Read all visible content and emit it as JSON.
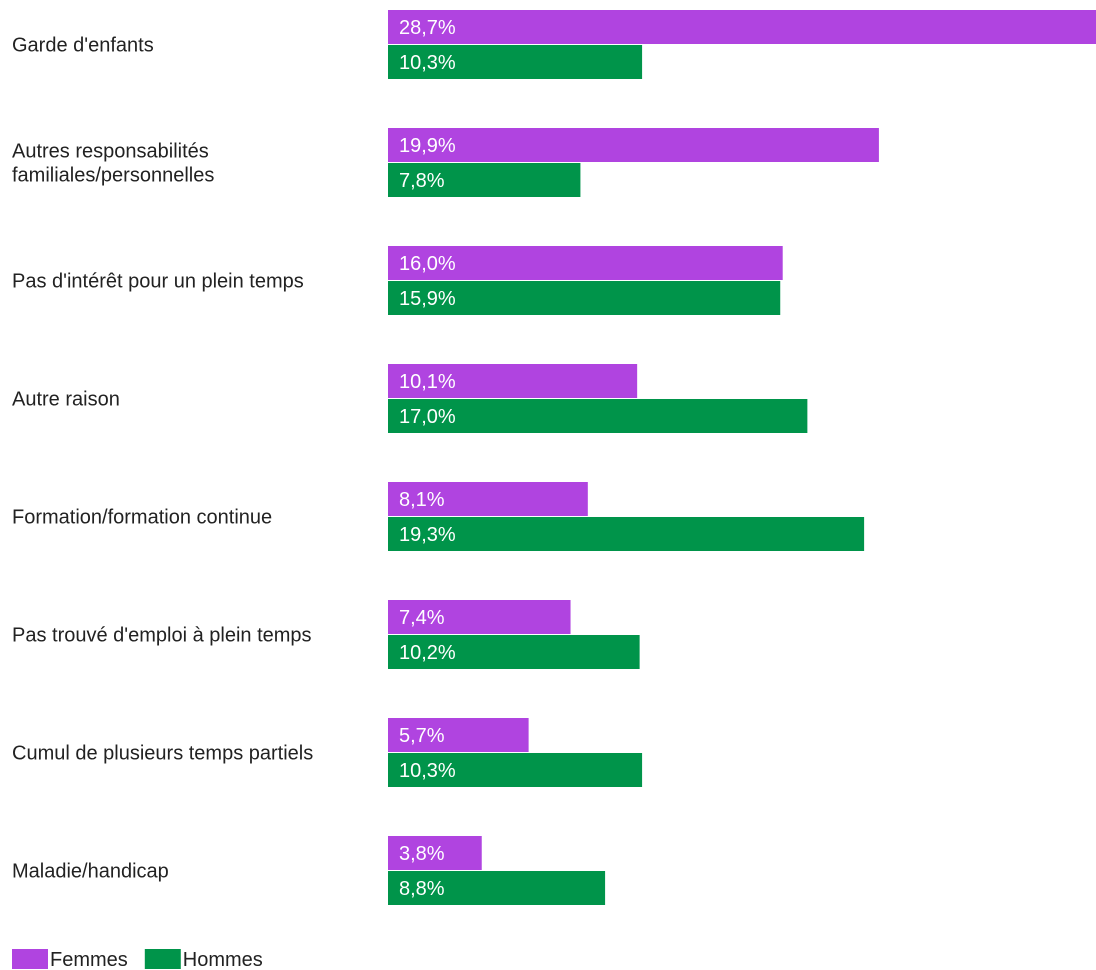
{
  "chart_data": {
    "type": "bar",
    "orientation": "horizontal",
    "categories": [
      [
        "Garde d'enfants"
      ],
      [
        "Autres responsabilités",
        "familiales/personnelles"
      ],
      [
        "Pas d'intérêt pour un plein temps"
      ],
      [
        "Autre raison"
      ],
      [
        "Formation/formation continue"
      ],
      [
        "Pas trouvé d'emploi à plein temps"
      ],
      [
        "Cumul de plusieurs temps partiels"
      ],
      [
        "Maladie/handicap"
      ]
    ],
    "series": [
      {
        "name": "Femmes",
        "color": "#b044e0",
        "values": [
          28.7,
          19.9,
          16.0,
          10.1,
          8.1,
          7.4,
          5.7,
          3.8
        ],
        "labels": [
          "28,7%",
          "19,9%",
          "16,0%",
          "10,1%",
          "8,1%",
          "7,4%",
          "5,7%",
          "3,8%"
        ]
      },
      {
        "name": "Hommes",
        "color": "#00944a",
        "values": [
          10.3,
          7.8,
          15.9,
          17.0,
          19.3,
          10.2,
          10.3,
          8.8
        ],
        "labels": [
          "10,3%",
          "7,8%",
          "15,9%",
          "17,0%",
          "19,3%",
          "10,2%",
          "10,3%",
          "8,8%"
        ]
      }
    ],
    "xlim": [
      0,
      28.7
    ],
    "grid": false,
    "legend_position": "bottom-left"
  }
}
